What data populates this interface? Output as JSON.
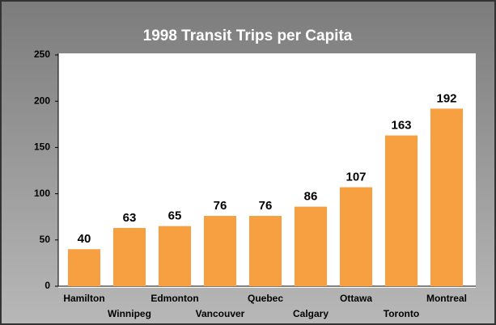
{
  "chart_data": {
    "type": "bar",
    "title": "1998 Transit Trips per Capita",
    "categories": [
      "Hamilton",
      "Winnipeg",
      "Edmonton",
      "Vancouver",
      "Quebec",
      "Calgary",
      "Ottawa",
      "Toronto",
      "Montreal"
    ],
    "values": [
      40,
      63,
      65,
      76,
      76,
      86,
      107,
      163,
      192
    ],
    "color": "#f7a041",
    "ylim": [
      0,
      250
    ],
    "yticks": [
      0,
      50,
      100,
      150,
      200,
      250
    ],
    "grid": false
  }
}
